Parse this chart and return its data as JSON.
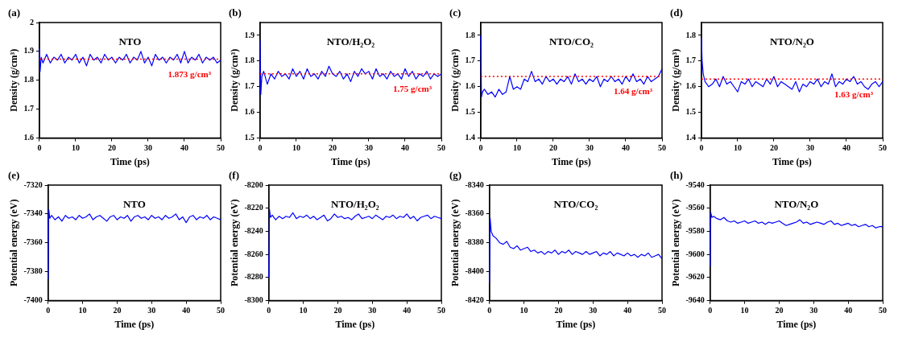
{
  "chart_data": [
    {
      "type": "line",
      "title": "NTO",
      "xlabel": "Time (ps)",
      "ylabel": "Density (g/cm³)",
      "annotations": [
        "(a)"
      ],
      "xlim": [
        0,
        50
      ],
      "xticks": [
        0,
        10,
        20,
        30,
        40,
        50
      ],
      "ylim": [
        1.6,
        2.0
      ],
      "yticks": [
        1.6,
        1.7,
        1.8,
        1.9,
        2.0
      ],
      "grid": false,
      "legend": false,
      "marker": "none",
      "line_style": "solid",
      "ref_lines": [
        {
          "axis": "y",
          "value": 1.873,
          "label": "1.873 g/cm³",
          "color": "#ff0000",
          "line_style": "dotted"
        }
      ],
      "x": [
        0,
        0.2,
        0.5,
        1,
        2,
        3,
        4,
        5,
        6,
        7,
        8,
        9,
        10,
        11,
        12,
        13,
        14,
        15,
        16,
        17,
        18,
        19,
        20,
        21,
        22,
        23,
        24,
        25,
        26,
        27,
        28,
        29,
        30,
        31,
        32,
        33,
        34,
        35,
        36,
        37,
        38,
        39,
        40,
        41,
        42,
        43,
        44,
        45,
        46,
        47,
        48,
        49,
        50
      ],
      "series": [
        {
          "color": "#0000ff",
          "values": [
            1.91,
            1.83,
            1.88,
            1.86,
            1.89,
            1.86,
            1.88,
            1.87,
            1.89,
            1.86,
            1.88,
            1.87,
            1.89,
            1.86,
            1.88,
            1.85,
            1.89,
            1.87,
            1.88,
            1.86,
            1.89,
            1.87,
            1.88,
            1.86,
            1.88,
            1.87,
            1.89,
            1.86,
            1.88,
            1.87,
            1.9,
            1.86,
            1.88,
            1.85,
            1.89,
            1.87,
            1.88,
            1.86,
            1.88,
            1.87,
            1.89,
            1.86,
            1.9,
            1.86,
            1.88,
            1.87,
            1.89,
            1.86,
            1.88,
            1.87,
            1.88,
            1.86,
            1.87
          ]
        }
      ]
    },
    {
      "type": "line",
      "title": "NTO/H₂O₂",
      "xlabel": "Time (ps)",
      "ylabel": "Density (g/cm³)",
      "annotations": [
        "(b)"
      ],
      "xlim": [
        0,
        50
      ],
      "xticks": [
        0,
        10,
        20,
        30,
        40,
        50
      ],
      "ylim": [
        1.5,
        1.95
      ],
      "yticks": [
        1.5,
        1.6,
        1.7,
        1.8,
        1.9
      ],
      "grid": false,
      "legend": false,
      "marker": "none",
      "line_style": "solid",
      "ref_lines": [
        {
          "axis": "y",
          "value": 1.75,
          "label": "1.75 g/cm³",
          "color": "#ff0000",
          "line_style": "dotted"
        }
      ],
      "x": [
        0,
        0.2,
        0.5,
        1,
        2,
        3,
        4,
        5,
        6,
        7,
        8,
        9,
        10,
        11,
        12,
        13,
        14,
        15,
        16,
        17,
        18,
        19,
        20,
        21,
        22,
        23,
        24,
        25,
        26,
        27,
        28,
        29,
        30,
        31,
        32,
        33,
        34,
        35,
        36,
        37,
        38,
        39,
        40,
        41,
        42,
        43,
        44,
        45,
        46,
        47,
        48,
        49,
        50
      ],
      "series": [
        {
          "color": "#0000ff",
          "values": [
            1.88,
            1.67,
            1.74,
            1.76,
            1.71,
            1.75,
            1.73,
            1.76,
            1.74,
            1.75,
            1.73,
            1.77,
            1.74,
            1.76,
            1.73,
            1.77,
            1.74,
            1.75,
            1.73,
            1.76,
            1.74,
            1.78,
            1.75,
            1.74,
            1.76,
            1.73,
            1.75,
            1.72,
            1.76,
            1.74,
            1.77,
            1.75,
            1.76,
            1.73,
            1.77,
            1.74,
            1.75,
            1.73,
            1.76,
            1.74,
            1.75,
            1.73,
            1.77,
            1.74,
            1.76,
            1.73,
            1.75,
            1.74,
            1.76,
            1.73,
            1.75,
            1.74,
            1.75
          ]
        }
      ]
    },
    {
      "type": "line",
      "title": "NTO/CO₂",
      "xlabel": "Time (ps)",
      "ylabel": "Density (g/cm³)",
      "annotations": [
        "(c)"
      ],
      "xlim": [
        0,
        50
      ],
      "xticks": [
        0,
        10,
        20,
        30,
        40,
        50
      ],
      "ylim": [
        1.4,
        1.85
      ],
      "yticks": [
        1.4,
        1.5,
        1.6,
        1.7,
        1.8
      ],
      "grid": false,
      "legend": false,
      "marker": "none",
      "line_style": "solid",
      "ref_lines": [
        {
          "axis": "y",
          "value": 1.64,
          "label": "1.64 g/cm³",
          "color": "#ff0000",
          "line_style": "dotted"
        }
      ],
      "x": [
        0,
        0.2,
        0.5,
        1,
        2,
        3,
        4,
        5,
        6,
        7,
        8,
        9,
        10,
        11,
        12,
        13,
        14,
        15,
        16,
        17,
        18,
        19,
        20,
        21,
        22,
        23,
        24,
        25,
        26,
        27,
        28,
        29,
        30,
        31,
        32,
        33,
        34,
        35,
        36,
        37,
        38,
        39,
        40,
        41,
        42,
        43,
        44,
        45,
        46,
        47,
        48,
        49,
        50
      ],
      "series": [
        {
          "color": "#0000ff",
          "values": [
            1.8,
            1.56,
            1.58,
            1.59,
            1.57,
            1.58,
            1.56,
            1.59,
            1.57,
            1.58,
            1.64,
            1.59,
            1.6,
            1.59,
            1.63,
            1.62,
            1.66,
            1.62,
            1.63,
            1.61,
            1.64,
            1.62,
            1.63,
            1.61,
            1.63,
            1.62,
            1.64,
            1.61,
            1.65,
            1.62,
            1.63,
            1.61,
            1.63,
            1.62,
            1.64,
            1.6,
            1.63,
            1.62,
            1.64,
            1.62,
            1.63,
            1.61,
            1.64,
            1.62,
            1.65,
            1.62,
            1.63,
            1.61,
            1.64,
            1.62,
            1.63,
            1.64,
            1.67
          ]
        }
      ]
    },
    {
      "type": "line",
      "title": "NTO/N₂O",
      "xlabel": "Time (ps)",
      "ylabel": "Density (g/cm³)",
      "annotations": [
        "(d)"
      ],
      "xlim": [
        0,
        50
      ],
      "xticks": [
        0,
        10,
        20,
        30,
        40,
        50
      ],
      "ylim": [
        1.4,
        1.85
      ],
      "yticks": [
        1.4,
        1.5,
        1.6,
        1.7,
        1.8
      ],
      "grid": false,
      "legend": false,
      "marker": "none",
      "line_style": "solid",
      "ref_lines": [
        {
          "axis": "y",
          "value": 1.63,
          "label": "1.63 g/cm³",
          "color": "#ff0000",
          "line_style": "dotted"
        }
      ],
      "x": [
        0,
        0.2,
        0.5,
        1,
        2,
        3,
        4,
        5,
        6,
        7,
        8,
        9,
        10,
        11,
        12,
        13,
        14,
        15,
        16,
        17,
        18,
        19,
        20,
        21,
        22,
        23,
        24,
        25,
        26,
        27,
        28,
        29,
        30,
        31,
        32,
        33,
        34,
        35,
        36,
        37,
        38,
        39,
        40,
        41,
        42,
        43,
        44,
        45,
        46,
        47,
        48,
        49,
        50
      ],
      "series": [
        {
          "color": "#0000ff",
          "values": [
            1.79,
            1.7,
            1.65,
            1.62,
            1.6,
            1.61,
            1.63,
            1.6,
            1.64,
            1.61,
            1.62,
            1.6,
            1.58,
            1.62,
            1.61,
            1.63,
            1.6,
            1.62,
            1.61,
            1.6,
            1.63,
            1.61,
            1.64,
            1.6,
            1.62,
            1.61,
            1.6,
            1.59,
            1.62,
            1.58,
            1.61,
            1.6,
            1.62,
            1.61,
            1.63,
            1.6,
            1.62,
            1.61,
            1.65,
            1.6,
            1.62,
            1.61,
            1.63,
            1.62,
            1.64,
            1.61,
            1.62,
            1.6,
            1.59,
            1.61,
            1.62,
            1.6,
            1.62
          ]
        }
      ]
    },
    {
      "type": "line",
      "title": "NTO",
      "xlabel": "Time (ps)",
      "ylabel": "Potential energy (eV)",
      "annotations": [
        "(e)"
      ],
      "xlim": [
        0,
        50
      ],
      "xticks": [
        0,
        10,
        20,
        30,
        40,
        50
      ],
      "ylim": [
        -7400,
        -7320
      ],
      "yticks": [
        -7400,
        -7380,
        -7360,
        -7340,
        -7320
      ],
      "grid": false,
      "legend": false,
      "marker": "none",
      "line_style": "solid",
      "x": [
        0,
        0.2,
        0.5,
        1,
        2,
        3,
        4,
        5,
        6,
        7,
        8,
        9,
        10,
        11,
        12,
        13,
        14,
        15,
        16,
        17,
        18,
        19,
        20,
        21,
        22,
        23,
        24,
        25,
        26,
        27,
        28,
        29,
        30,
        31,
        32,
        33,
        34,
        35,
        36,
        37,
        38,
        39,
        40,
        41,
        42,
        43,
        44,
        45,
        46,
        47,
        48,
        49,
        50
      ],
      "series": [
        {
          "color": "#0000ff",
          "values": [
            -7385,
            -7337,
            -7343,
            -7341,
            -7344,
            -7342,
            -7345,
            -7341,
            -7343,
            -7342,
            -7344,
            -7341,
            -7343,
            -7342,
            -7340,
            -7344,
            -7342,
            -7341,
            -7343,
            -7345,
            -7342,
            -7341,
            -7344,
            -7342,
            -7343,
            -7341,
            -7345,
            -7342,
            -7341,
            -7343,
            -7342,
            -7344,
            -7341,
            -7343,
            -7342,
            -7344,
            -7341,
            -7343,
            -7342,
            -7340,
            -7344,
            -7342,
            -7346,
            -7342,
            -7341,
            -7344,
            -7342,
            -7343,
            -7341,
            -7344,
            -7342,
            -7343,
            -7344
          ]
        }
      ]
    },
    {
      "type": "line",
      "title": "NTO/H₂O₂",
      "xlabel": "Time (ps)",
      "ylabel": "Potential energy (eV)",
      "annotations": [
        "(f)"
      ],
      "xlim": [
        0,
        50
      ],
      "xticks": [
        0,
        10,
        20,
        30,
        40,
        50
      ],
      "ylim": [
        -8300,
        -8200
      ],
      "yticks": [
        -8300,
        -8280,
        -8260,
        -8240,
        -8220,
        -8200
      ],
      "grid": false,
      "legend": false,
      "marker": "none",
      "line_style": "solid",
      "x": [
        0,
        0.2,
        0.5,
        1,
        2,
        3,
        4,
        5,
        6,
        7,
        8,
        9,
        10,
        11,
        12,
        13,
        14,
        15,
        16,
        17,
        18,
        19,
        20,
        21,
        22,
        23,
        24,
        25,
        26,
        27,
        28,
        29,
        30,
        31,
        32,
        33,
        34,
        35,
        36,
        37,
        38,
        39,
        40,
        41,
        42,
        43,
        44,
        45,
        46,
        47,
        48,
        49,
        50
      ],
      "series": [
        {
          "color": "#0000ff",
          "values": [
            -8280,
            -8221,
            -8228,
            -8226,
            -8230,
            -8227,
            -8229,
            -8227,
            -8228,
            -8224,
            -8229,
            -8227,
            -8228,
            -8226,
            -8229,
            -8227,
            -8230,
            -8228,
            -8226,
            -8231,
            -8229,
            -8225,
            -8228,
            -8227,
            -8229,
            -8228,
            -8230,
            -8227,
            -8225,
            -8229,
            -8228,
            -8227,
            -8229,
            -8226,
            -8228,
            -8230,
            -8227,
            -8228,
            -8226,
            -8229,
            -8227,
            -8228,
            -8225,
            -8229,
            -8227,
            -8231,
            -8228,
            -8227,
            -8226,
            -8229,
            -8227,
            -8228,
            -8229
          ]
        }
      ]
    },
    {
      "type": "line",
      "title": "NTO/CO₂",
      "xlabel": "Time (ps)",
      "ylabel": "Potential energy (eV)",
      "annotations": [
        "(g)"
      ],
      "xlim": [
        0,
        50
      ],
      "xticks": [
        0,
        10,
        20,
        30,
        40,
        50
      ],
      "ylim": [
        -8420,
        -8340
      ],
      "yticks": [
        -8420,
        -8400,
        -8380,
        -8360,
        -8340
      ],
      "grid": false,
      "legend": false,
      "marker": "none",
      "line_style": "solid",
      "x": [
        0,
        0.2,
        0.5,
        1,
        2,
        3,
        4,
        5,
        6,
        7,
        8,
        9,
        10,
        11,
        12,
        13,
        14,
        15,
        16,
        17,
        18,
        19,
        20,
        21,
        22,
        23,
        24,
        25,
        26,
        27,
        28,
        29,
        30,
        31,
        32,
        33,
        34,
        35,
        36,
        37,
        38,
        39,
        40,
        41,
        42,
        43,
        44,
        45,
        46,
        47,
        48,
        49,
        50
      ],
      "series": [
        {
          "color": "#0000ff",
          "values": [
            -8408,
            -8363,
            -8372,
            -8375,
            -8377,
            -8380,
            -8381,
            -8379,
            -8383,
            -8384,
            -8382,
            -8385,
            -8384,
            -8383,
            -8386,
            -8385,
            -8387,
            -8386,
            -8388,
            -8386,
            -8387,
            -8385,
            -8388,
            -8386,
            -8387,
            -8385,
            -8388,
            -8386,
            -8387,
            -8388,
            -8386,
            -8388,
            -8387,
            -8386,
            -8389,
            -8387,
            -8388,
            -8386,
            -8389,
            -8387,
            -8388,
            -8389,
            -8387,
            -8389,
            -8388,
            -8390,
            -8388,
            -8389,
            -8387,
            -8390,
            -8389,
            -8388,
            -8391
          ]
        }
      ]
    },
    {
      "type": "line",
      "title": "NTO/N₂O",
      "xlabel": "Time (ps)",
      "ylabel": "Potential energy (eV)",
      "annotations": [
        "(h)"
      ],
      "xlim": [
        0,
        50
      ],
      "xticks": [
        0,
        10,
        20,
        30,
        40,
        50
      ],
      "ylim": [
        -9640,
        -9540
      ],
      "yticks": [
        -9640,
        -9620,
        -9600,
        -9580,
        -9560,
        -9540
      ],
      "grid": false,
      "legend": false,
      "marker": "none",
      "line_style": "solid",
      "x": [
        0,
        0.2,
        0.5,
        1,
        2,
        3,
        4,
        5,
        6,
        7,
        8,
        9,
        10,
        11,
        12,
        13,
        14,
        15,
        16,
        17,
        18,
        19,
        20,
        21,
        22,
        23,
        24,
        25,
        26,
        27,
        28,
        29,
        30,
        31,
        32,
        33,
        34,
        35,
        36,
        37,
        38,
        39,
        40,
        41,
        42,
        43,
        44,
        45,
        46,
        47,
        48,
        49,
        50
      ],
      "series": [
        {
          "color": "#0000ff",
          "values": [
            -9610,
            -9564,
            -9568,
            -9567,
            -9569,
            -9570,
            -9568,
            -9571,
            -9572,
            -9571,
            -9573,
            -9572,
            -9571,
            -9573,
            -9572,
            -9571,
            -9573,
            -9572,
            -9574,
            -9572,
            -9573,
            -9572,
            -9571,
            -9573,
            -9575,
            -9574,
            -9573,
            -9572,
            -9570,
            -9573,
            -9572,
            -9574,
            -9573,
            -9572,
            -9573,
            -9574,
            -9572,
            -9571,
            -9574,
            -9573,
            -9575,
            -9574,
            -9573,
            -9575,
            -9574,
            -9576,
            -9575,
            -9574,
            -9576,
            -9575,
            -9577,
            -9576,
            -9576
          ]
        }
      ]
    }
  ]
}
